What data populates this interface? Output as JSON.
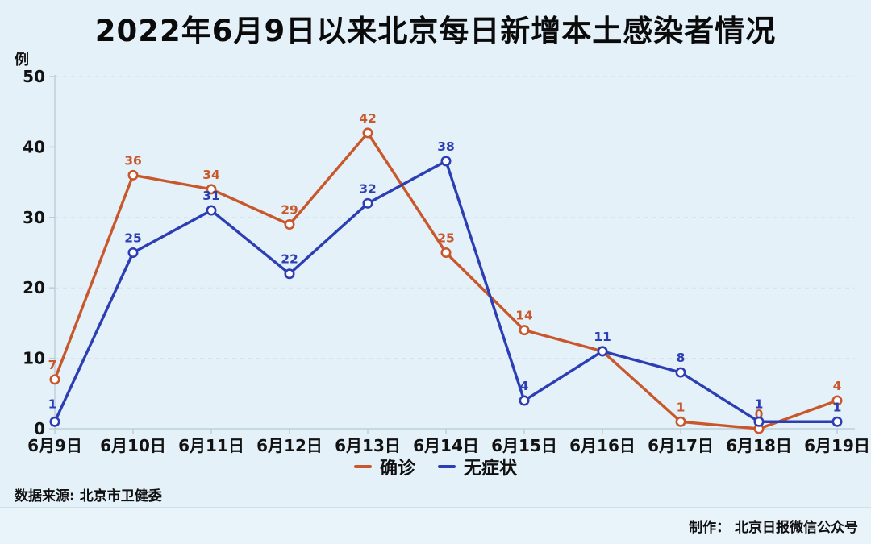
{
  "title": "2022年6月9日以来北京每日新增本土感染者情况",
  "y_axis_unit": "例",
  "footer": {
    "source": "数据来源: 北京市卫健委",
    "credit": "制作： 北京日报微信公众号"
  },
  "colors": {
    "confirmed": "#C8582C",
    "asymptomatic": "#2C3EB3",
    "background": "#E4F1F9",
    "grid": "#CBDCE8",
    "axis": "#BCCFDB",
    "text": "#121212",
    "marker_fill": "#FFFFFF"
  },
  "chart_data": {
    "type": "line",
    "title": "2022年6月9日以来北京每日新增本土感染者情况",
    "categories": [
      "6月9日",
      "6月10日",
      "6月11日",
      "6月12日",
      "6月13日",
      "6月14日",
      "6月15日",
      "6月16日",
      "6月17日",
      "6月18日",
      "6月19日"
    ],
    "series": [
      {
        "name": "确诊",
        "color_key": "confirmed",
        "values": [
          7,
          36,
          34,
          29,
          42,
          25,
          14,
          11,
          1,
          0,
          4
        ],
        "labels": [
          "7",
          "36",
          "34",
          "29",
          "42",
          "25",
          "14",
          "",
          "1",
          "0",
          "4"
        ]
      },
      {
        "name": "无症状",
        "color_key": "asymptomatic",
        "values": [
          1,
          25,
          31,
          22,
          32,
          38,
          4,
          11,
          8,
          1,
          1
        ],
        "labels": [
          "1",
          "25",
          "31",
          "22",
          "32",
          "38",
          "4",
          "11",
          "8",
          "1",
          "1"
        ]
      }
    ],
    "xlabel": "",
    "ylabel": "例",
    "ylim": [
      0,
      50
    ],
    "yticks": [
      0,
      10,
      20,
      30,
      40,
      50
    ],
    "grid": true,
    "legend_position": "bottom"
  }
}
